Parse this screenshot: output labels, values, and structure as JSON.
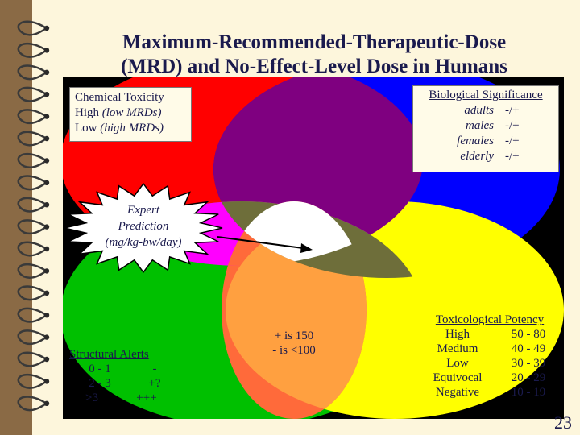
{
  "title": {
    "line1": "Maximum-Recommended-Therapeutic-Dose",
    "line2": "(MRD) and No-Effect-Level Dose in Humans"
  },
  "chemical_toxicity": {
    "heading": "Chemical Toxicity",
    "rows": [
      {
        "label": "High",
        "detail": "(low MRDs)"
      },
      {
        "label": "Low",
        "detail": "(high MRDs)"
      }
    ]
  },
  "biological_significance": {
    "heading": "Biological Significance",
    "rows": [
      {
        "label": "adults",
        "value": "-/+"
      },
      {
        "label": "males",
        "value": "-/+"
      },
      {
        "label": "females",
        "value": "-/+"
      },
      {
        "label": "elderly",
        "value": "-/+"
      }
    ]
  },
  "expert_prediction": {
    "line1": "Expert",
    "line2": "Prediction",
    "line3": "(mg/kg-bw/day)"
  },
  "center_note": {
    "line1": "+ is 150",
    "line2": "- is <100"
  },
  "structural_alerts": {
    "heading": "Structural Alerts",
    "rows": [
      {
        "range": "0 - 1",
        "value": "-"
      },
      {
        "range": "2 - 3",
        "value": "+?"
      },
      {
        "range": ">3",
        "value": "+++"
      }
    ]
  },
  "toxicological_potency": {
    "heading": "Toxicological Potency",
    "rows": [
      {
        "label": "High",
        "range": "50 - 80"
      },
      {
        "label": "Medium",
        "range": "40 - 49"
      },
      {
        "label": "Low",
        "range": "30 - 39"
      },
      {
        "label": "Equivocal",
        "range": "20 - 29"
      },
      {
        "label": "Negative",
        "range": "10 - 19"
      }
    ]
  },
  "page_number": "23",
  "colors": {
    "background": "#8a6a45",
    "slide": "#fdf6dc",
    "panel": "#000000",
    "red": "#ff0000",
    "blue": "#0000ff",
    "green": "#00c000",
    "yellow": "#ffff00",
    "overlap_red_blue": "#7f0080",
    "overlap_red_green": "#ff00ff",
    "overlap_red_orange": "#ff6a3a",
    "overlap_orange_yellow": "#ffa040",
    "overlap_blue_green": "#6e6e3a",
    "center": "#ffffff"
  },
  "icons": {
    "spiral_binding": "spiral-binding-icon",
    "arrow": "arrow-icon"
  }
}
